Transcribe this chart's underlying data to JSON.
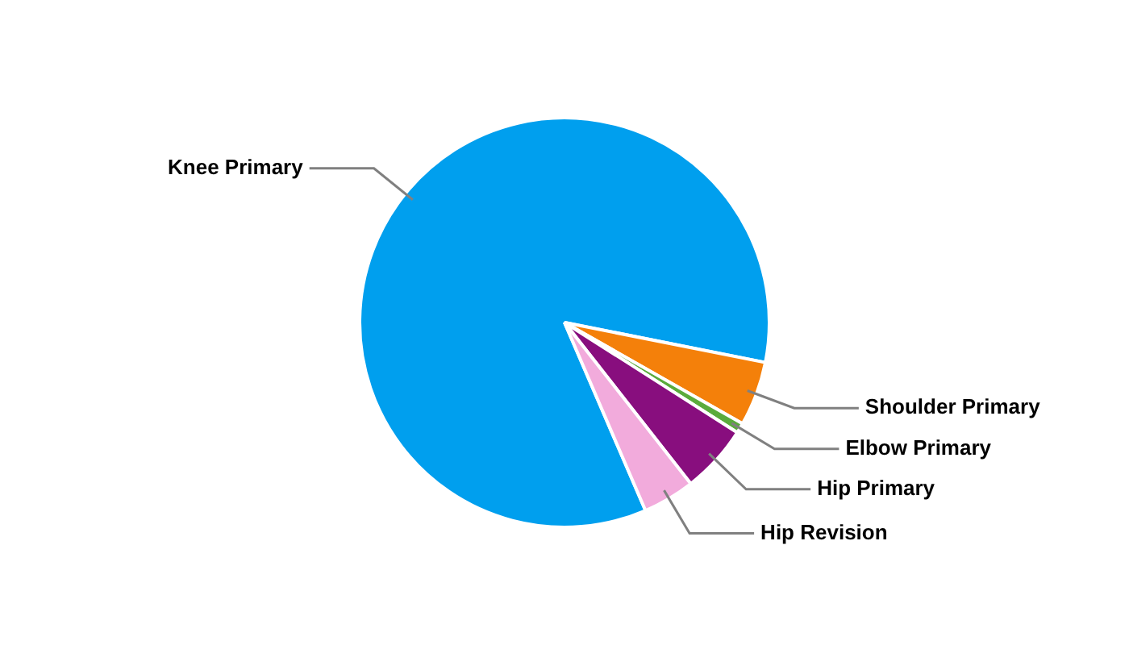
{
  "chart_data": {
    "type": "pie",
    "categories": [
      "Knee Primary",
      "Shoulder Primary",
      "Elbow Primary",
      "Hip Primary",
      "Hip Revision"
    ],
    "values": [
      84.6,
      5.1,
      0.8,
      5.4,
      4.1
    ],
    "colors": [
      "#009fee",
      "#f4800a",
      "#5aab3c",
      "#880e7e",
      "#f2abdc"
    ],
    "legend": false
  }
}
